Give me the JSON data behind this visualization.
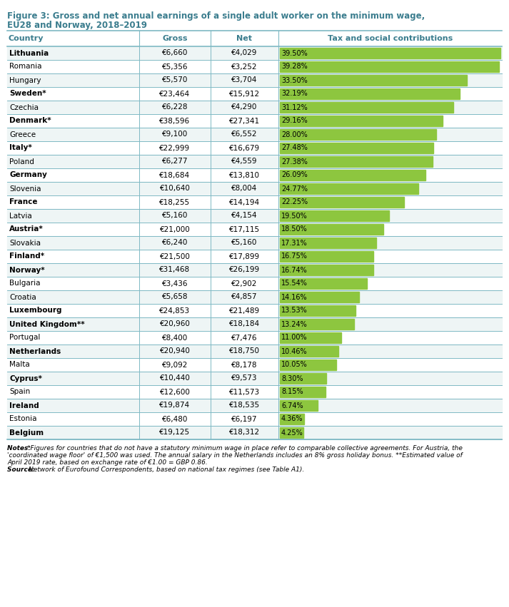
{
  "title_line1": "Figure 3: Gross and net annual earnings of a single adult worker on the minimum wage,",
  "title_line2": "EU28 and Norway, 2018–2019",
  "col_country": "Country",
  "col_gross": "Gross",
  "col_net": "Net",
  "col_tax": "Tax and social contributions",
  "countries": [
    "Lithuania",
    "Romania",
    "Hungary",
    "Sweden*",
    "Czechia",
    "Denmark*",
    "Greece",
    "Italy*",
    "Poland",
    "Germany",
    "Slovenia",
    "France",
    "Latvia",
    "Austria*",
    "Slovakia",
    "Finland*",
    "Norway*",
    "Bulgaria",
    "Croatia",
    "Luxembourg",
    "United Kingdom**",
    "Portugal",
    "Netherlands",
    "Malta",
    "Cyprus*",
    "Spain",
    "Ireland",
    "Estonia",
    "Belgium"
  ],
  "gross": [
    6660,
    5356,
    5570,
    23464,
    6228,
    38596,
    9100,
    22999,
    6277,
    18684,
    10640,
    18255,
    5160,
    21000,
    6240,
    21500,
    31468,
    3436,
    5658,
    24853,
    20960,
    8400,
    20940,
    9092,
    10440,
    12600,
    19874,
    6480,
    19125
  ],
  "net": [
    4029,
    3252,
    3704,
    15912,
    4290,
    27341,
    6552,
    16679,
    4559,
    13810,
    8004,
    14194,
    4154,
    17115,
    5160,
    17899,
    26199,
    2902,
    4857,
    21489,
    18184,
    7476,
    18750,
    8178,
    9573,
    11573,
    18535,
    6197,
    18312
  ],
  "tax_pct": [
    39.5,
    39.28,
    33.5,
    32.19,
    31.12,
    29.16,
    28.0,
    27.48,
    27.38,
    26.09,
    24.77,
    22.25,
    19.5,
    18.5,
    17.31,
    16.75,
    16.74,
    15.54,
    14.16,
    13.53,
    13.24,
    11.0,
    10.46,
    10.05,
    8.3,
    8.15,
    6.74,
    4.36,
    4.25
  ],
  "bold_countries": [
    "Lithuania",
    "Romania",
    "Hungary",
    "Sweden*",
    "Czechia",
    "Denmark*",
    "Greece",
    "Italy*",
    "Poland",
    "Germany",
    "Slovenia",
    "France",
    "Latvia",
    "Austria*",
    "Slovakia",
    "Finland*",
    "Norway*",
    "Bulgaria",
    "Croatia",
    "Luxembourg",
    "United Kingdom**",
    "Portugal",
    "Netherlands",
    "Malta",
    "Cyprus*",
    "Spain",
    "Ireland",
    "Estonia",
    "Belgium"
  ],
  "bold_indices": [
    0,
    3,
    5,
    7,
    9,
    11,
    13,
    15,
    16,
    19,
    20,
    22,
    24,
    26,
    28
  ],
  "bar_color": "#8DC63F",
  "header_bg": "#FFFFFF",
  "row_bg_odd": "#F0F7F7",
  "row_bg_even": "#FFFFFF",
  "header_color": "#3B7D8E",
  "title_color": "#3B7D8E",
  "separator_color": "#7FB9C4",
  "notes_text": "Notes: *Figures for countries that do not have a statutory minimum wage in place refer to comparable collective agreements. For Austria, the\n'coordinated wage floor' of €1,500 was used. The annual salary in the Netherlands includes an 8% gross holiday bonus. **Estimated value of\nApril 2019 rate, based on exchange rate of €1.00 = GBP 0.86.\nSource: Network of Eurofound Correspondents, based on national tax regimes (see Table A1).",
  "max_bar_pct": 39.5
}
